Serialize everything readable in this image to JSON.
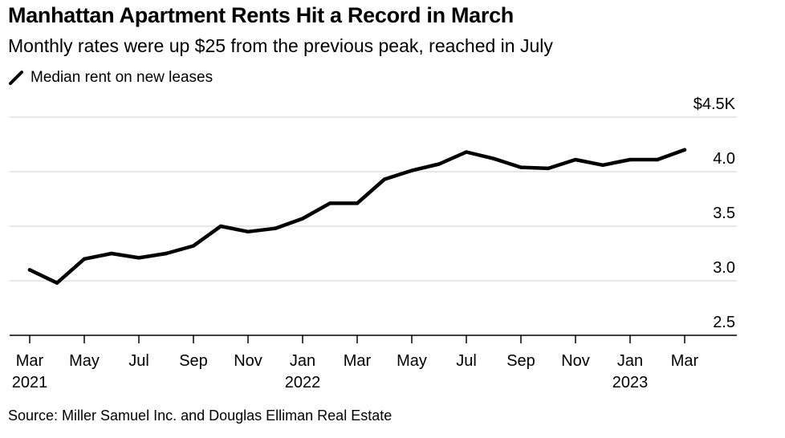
{
  "chart_data": {
    "type": "line",
    "title": "Manhattan Apartment Rents Hit a Record in March",
    "subtitle": "Monthly rates were up $25 from the previous peak, reached in July",
    "source": "Source: Miller Samuel Inc. and Douglas Elliman Real Estate",
    "legend_position": "top-left",
    "grid": true,
    "ylim": [
      2.5,
      4.5
    ],
    "y_ticks": [
      {
        "value": 4.5,
        "label": "$4.5K"
      },
      {
        "value": 4.0,
        "label": "4.0"
      },
      {
        "value": 3.5,
        "label": "3.5"
      },
      {
        "value": 3.0,
        "label": "3.0"
      },
      {
        "value": 2.5,
        "label": "2.5"
      }
    ],
    "x_ticks": [
      {
        "month": "2021-03",
        "label": "Mar",
        "year": "2021"
      },
      {
        "month": "2021-05",
        "label": "May",
        "year": ""
      },
      {
        "month": "2021-07",
        "label": "Jul",
        "year": ""
      },
      {
        "month": "2021-09",
        "label": "Sep",
        "year": ""
      },
      {
        "month": "2021-11",
        "label": "Nov",
        "year": ""
      },
      {
        "month": "2022-01",
        "label": "Jan",
        "year": "2022"
      },
      {
        "month": "2022-03",
        "label": "Mar",
        "year": ""
      },
      {
        "month": "2022-05",
        "label": "May",
        "year": ""
      },
      {
        "month": "2022-07",
        "label": "Jul",
        "year": ""
      },
      {
        "month": "2022-09",
        "label": "Sep",
        "year": ""
      },
      {
        "month": "2022-11",
        "label": "Nov",
        "year": ""
      },
      {
        "month": "2023-01",
        "label": "Jan",
        "year": "2023"
      },
      {
        "month": "2023-03",
        "label": "Mar",
        "year": ""
      }
    ],
    "series": [
      {
        "name": "Median rent on new leases",
        "color": "#000000",
        "points": [
          {
            "x": "2021-03",
            "y": 3.1
          },
          {
            "x": "2021-04",
            "y": 2.98
          },
          {
            "x": "2021-05",
            "y": 3.2
          },
          {
            "x": "2021-06",
            "y": 3.25
          },
          {
            "x": "2021-07",
            "y": 3.21
          },
          {
            "x": "2021-08",
            "y": 3.25
          },
          {
            "x": "2021-09",
            "y": 3.32
          },
          {
            "x": "2021-10",
            "y": 3.5
          },
          {
            "x": "2021-11",
            "y": 3.45
          },
          {
            "x": "2021-12",
            "y": 3.48
          },
          {
            "x": "2022-01",
            "y": 3.57
          },
          {
            "x": "2022-02",
            "y": 3.71
          },
          {
            "x": "2022-03",
            "y": 3.71
          },
          {
            "x": "2022-04",
            "y": 3.93
          },
          {
            "x": "2022-05",
            "y": 4.01
          },
          {
            "x": "2022-06",
            "y": 4.07
          },
          {
            "x": "2022-07",
            "y": 4.18
          },
          {
            "x": "2022-08",
            "y": 4.12
          },
          {
            "x": "2022-09",
            "y": 4.04
          },
          {
            "x": "2022-10",
            "y": 4.03
          },
          {
            "x": "2022-11",
            "y": 4.11
          },
          {
            "x": "2022-12",
            "y": 4.06
          },
          {
            "x": "2023-01",
            "y": 4.11
          },
          {
            "x": "2023-02",
            "y": 4.11
          },
          {
            "x": "2023-03",
            "y": 4.2
          }
        ]
      }
    ]
  }
}
